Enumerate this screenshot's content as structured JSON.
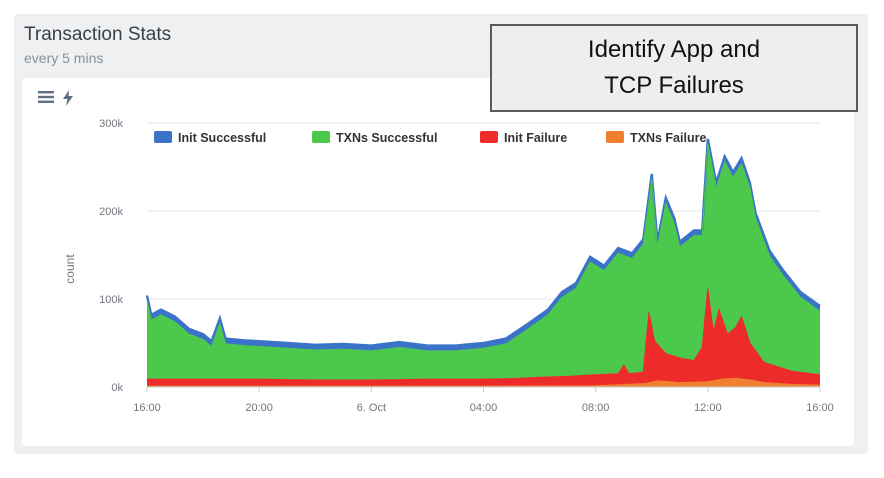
{
  "panel": {
    "title": "Transaction Stats",
    "subtitle": "every 5 mins",
    "icons": [
      "menu-icon",
      "bolt-icon"
    ]
  },
  "callout": {
    "line1": "Identify App and",
    "line2": "TCP Failures"
  },
  "chart_data": {
    "type": "area",
    "stacked": true,
    "ylabel": "count",
    "yticks": [
      "0k",
      "100k",
      "200k",
      "300k"
    ],
    "ylim": [
      0,
      300000
    ],
    "xlim": [
      0,
      24
    ],
    "xticks": [
      {
        "h": 0,
        "label": "16:00"
      },
      {
        "h": 4,
        "label": "20:00"
      },
      {
        "h": 8,
        "label": "6. Oct"
      },
      {
        "h": 12,
        "label": "04:00"
      },
      {
        "h": 16,
        "label": "08:00"
      },
      {
        "h": 20,
        "label": "12:00"
      },
      {
        "h": 24,
        "label": "16:00"
      }
    ],
    "grid": true,
    "legend_position": "top",
    "series": [
      {
        "name": "Init Successful",
        "color": "#3b73c8",
        "points": [
          [
            0,
            104000
          ],
          [
            0.15,
            82000
          ],
          [
            0.5,
            88000
          ],
          [
            1,
            80000
          ],
          [
            1.5,
            66000
          ],
          [
            2,
            60000
          ],
          [
            2.3,
            52000
          ],
          [
            2.6,
            78000
          ],
          [
            2.8,
            55000
          ],
          [
            3.5,
            53000
          ],
          [
            4,
            52000
          ],
          [
            5,
            50000
          ],
          [
            6,
            48000
          ],
          [
            7,
            49000
          ],
          [
            8,
            47000
          ],
          [
            9,
            51000
          ],
          [
            10,
            47000
          ],
          [
            11,
            47000
          ],
          [
            12,
            50000
          ],
          [
            12.8,
            55000
          ],
          [
            13.5,
            70000
          ],
          [
            14.3,
            88000
          ],
          [
            14.8,
            108000
          ],
          [
            15.3,
            118000
          ],
          [
            15.8,
            148000
          ],
          [
            16.3,
            138000
          ],
          [
            16.8,
            158000
          ],
          [
            17.3,
            152000
          ],
          [
            17.7,
            168000
          ],
          [
            18.0,
            242000
          ],
          [
            18.2,
            165000
          ],
          [
            18.5,
            215000
          ],
          [
            18.8,
            192000
          ],
          [
            19.0,
            165000
          ],
          [
            19.5,
            178000
          ],
          [
            19.8,
            178000
          ],
          [
            20.0,
            282000
          ],
          [
            20.3,
            232000
          ],
          [
            20.6,
            262000
          ],
          [
            20.9,
            244000
          ],
          [
            21.2,
            260000
          ],
          [
            21.5,
            232000
          ],
          [
            21.7,
            198000
          ],
          [
            22.2,
            155000
          ],
          [
            22.7,
            132000
          ],
          [
            23.3,
            108000
          ],
          [
            24,
            92000
          ]
        ]
      },
      {
        "name": "TXNs Successful",
        "color": "#4cc94c",
        "points": [
          [
            0,
            98000
          ],
          [
            0.15,
            76000
          ],
          [
            0.5,
            82000
          ],
          [
            1,
            74000
          ],
          [
            1.5,
            60000
          ],
          [
            2,
            54000
          ],
          [
            2.3,
            46000
          ],
          [
            2.6,
            72000
          ],
          [
            2.8,
            49000
          ],
          [
            3.5,
            47000
          ],
          [
            4,
            46000
          ],
          [
            5,
            44000
          ],
          [
            6,
            42000
          ],
          [
            7,
            43000
          ],
          [
            8,
            41000
          ],
          [
            9,
            45000
          ],
          [
            10,
            41000
          ],
          [
            11,
            41000
          ],
          [
            12,
            44000
          ],
          [
            12.8,
            49000
          ],
          [
            13.5,
            64000
          ],
          [
            14.3,
            82000
          ],
          [
            14.8,
            102000
          ],
          [
            15.3,
            112000
          ],
          [
            15.8,
            142000
          ],
          [
            16.3,
            132000
          ],
          [
            16.8,
            152000
          ],
          [
            17.3,
            146000
          ],
          [
            17.7,
            162000
          ],
          [
            18.0,
            236000
          ],
          [
            18.2,
            159000
          ],
          [
            18.5,
            209000
          ],
          [
            18.8,
            186000
          ],
          [
            19.0,
            159000
          ],
          [
            19.5,
            172000
          ],
          [
            19.8,
            172000
          ],
          [
            20.0,
            276000
          ],
          [
            20.3,
            226000
          ],
          [
            20.6,
            256000
          ],
          [
            20.9,
            238000
          ],
          [
            21.2,
            254000
          ],
          [
            21.5,
            226000
          ],
          [
            21.7,
            192000
          ],
          [
            22.2,
            149000
          ],
          [
            22.7,
            126000
          ],
          [
            23.3,
            102000
          ],
          [
            24,
            86000
          ]
        ]
      },
      {
        "name": "Init Failure",
        "color": "#ee2b2b",
        "points": [
          [
            0,
            9000
          ],
          [
            2,
            9000
          ],
          [
            4,
            9000
          ],
          [
            6,
            8000
          ],
          [
            8,
            8000
          ],
          [
            10,
            9000
          ],
          [
            12,
            9000
          ],
          [
            13,
            9500
          ],
          [
            14,
            11000
          ],
          [
            15,
            12000
          ],
          [
            16,
            14000
          ],
          [
            16.8,
            15000
          ],
          [
            17.0,
            25000
          ],
          [
            17.2,
            15000
          ],
          [
            17.7,
            17000
          ],
          [
            17.9,
            85000
          ],
          [
            18.1,
            52000
          ],
          [
            18.5,
            38000
          ],
          [
            19,
            33000
          ],
          [
            19.5,
            30000
          ],
          [
            19.8,
            45000
          ],
          [
            20,
            112000
          ],
          [
            20.2,
            62000
          ],
          [
            20.4,
            88000
          ],
          [
            20.7,
            60000
          ],
          [
            21,
            68000
          ],
          [
            21.2,
            80000
          ],
          [
            21.5,
            50000
          ],
          [
            22,
            28000
          ],
          [
            23,
            18000
          ],
          [
            24,
            14000
          ]
        ]
      },
      {
        "name": "TXNs Failure",
        "color": "#f08030",
        "points": [
          [
            0,
            1000
          ],
          [
            12,
            1000
          ],
          [
            16,
            1500
          ],
          [
            17.8,
            4000
          ],
          [
            18.2,
            7000
          ],
          [
            19,
            5000
          ],
          [
            20,
            6000
          ],
          [
            20.5,
            9000
          ],
          [
            21,
            10000
          ],
          [
            21.5,
            8000
          ],
          [
            22,
            5000
          ],
          [
            23,
            3000
          ],
          [
            24,
            2000
          ]
        ]
      }
    ]
  }
}
